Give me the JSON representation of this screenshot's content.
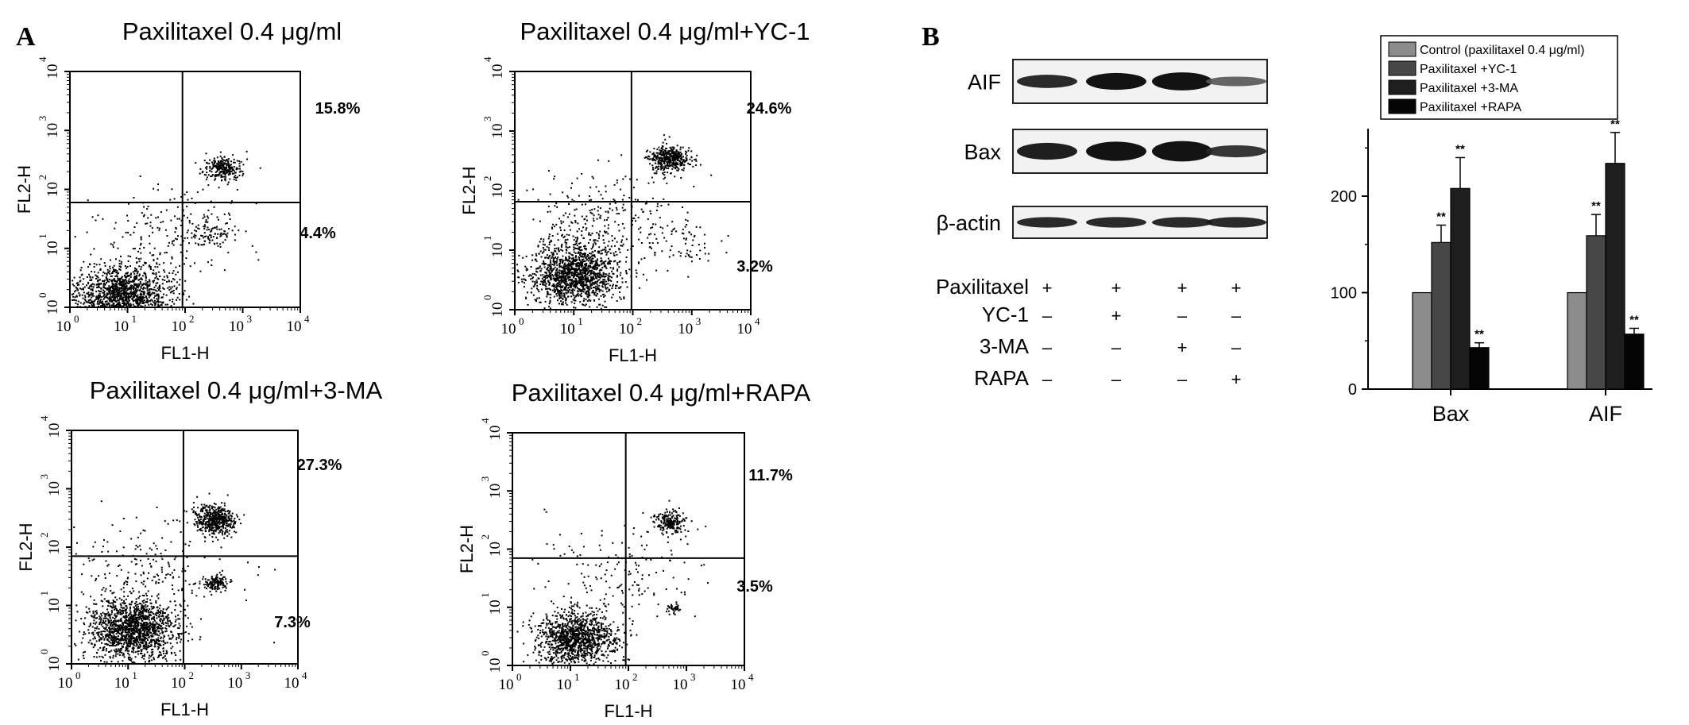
{
  "panel_a_letter": "A",
  "panel_b_letter": "B",
  "flow": {
    "xlabel": "FL1-H",
    "ylabel": "FL2-H",
    "tick_labels": [
      "10",
      "10",
      "10",
      "10",
      "10"
    ],
    "tick_exponents": [
      "0",
      "1",
      "2",
      "3",
      "4"
    ]
  },
  "chart_data": [
    {
      "type": "scatter",
      "title": "Paxilitaxel 0.4 μg/ml",
      "xlabel": "FL1-H",
      "ylabel": "FL2-H",
      "x_scale": "log",
      "y_scale": "log",
      "xlim": [
        1,
        10000
      ],
      "ylim": [
        1,
        10000
      ],
      "quadrant_gate": {
        "x": 90,
        "y": 60
      },
      "annotations": {
        "upper_right": "15.8%",
        "lower_right": "4.4%"
      },
      "populations": [
        {
          "cx": 8,
          "cy": 1.5,
          "spread": 0.35,
          "n": 1600
        },
        {
          "cx": 450,
          "cy": 230,
          "spread": 0.13,
          "n": 260
        },
        {
          "cx": 300,
          "cy": 18,
          "spread": 0.15,
          "n": 70
        },
        {
          "cx": 60,
          "cy": 20,
          "spread": 0.5,
          "n": 200
        }
      ]
    },
    {
      "type": "scatter",
      "title": "Paxilitaxel 0.4 μg/ml+YC-1",
      "xlabel": "FL1-H",
      "ylabel": "FL2-H",
      "x_scale": "log",
      "y_scale": "log",
      "xlim": [
        1,
        10000
      ],
      "ylim": [
        1,
        10000
      ],
      "quadrant_gate": {
        "x": 95,
        "y": 65
      },
      "annotations": {
        "upper_right": "24.6%",
        "lower_right": "3.2%"
      },
      "populations": [
        {
          "cx": 10,
          "cy": 4,
          "spread": 0.3,
          "n": 1400
        },
        {
          "cx": 400,
          "cy": 350,
          "spread": 0.14,
          "n": 420
        },
        {
          "cx": 30,
          "cy": 30,
          "spread": 0.55,
          "n": 300
        },
        {
          "cx": 700,
          "cy": 15,
          "spread": 0.25,
          "n": 60
        }
      ]
    },
    {
      "type": "scatter",
      "title": "Paxilitaxel 0.4 μg/ml+3-MA",
      "xlabel": "FL1-H",
      "ylabel": "FL2-H",
      "x_scale": "log",
      "y_scale": "log",
      "xlim": [
        1,
        10000
      ],
      "ylim": [
        1,
        10000
      ],
      "quadrant_gate": {
        "x": 95,
        "y": 70
      },
      "annotations": {
        "upper_right": "27.3%",
        "lower_right": "7.3%"
      },
      "populations": [
        {
          "cx": 12,
          "cy": 4,
          "spread": 0.32,
          "n": 1500
        },
        {
          "cx": 330,
          "cy": 300,
          "spread": 0.15,
          "n": 500
        },
        {
          "cx": 350,
          "cy": 25,
          "spread": 0.08,
          "n": 130
        },
        {
          "cx": 25,
          "cy": 40,
          "spread": 0.55,
          "n": 220
        }
      ]
    },
    {
      "type": "scatter",
      "title": "Paxilitaxel 0.4 μg/ml+RAPA",
      "xlabel": "FL1-H",
      "ylabel": "FL2-H",
      "x_scale": "log",
      "y_scale": "log",
      "xlim": [
        1,
        10000
      ],
      "ylim": [
        1,
        10000
      ],
      "quadrant_gate": {
        "x": 90,
        "y": 70
      },
      "annotations": {
        "upper_right": "11.7%",
        "lower_right": "3.5%"
      },
      "populations": [
        {
          "cx": 12,
          "cy": 3,
          "spread": 0.28,
          "n": 1200
        },
        {
          "cx": 500,
          "cy": 300,
          "spread": 0.12,
          "n": 200
        },
        {
          "cx": 600,
          "cy": 10,
          "spread": 0.06,
          "n": 40
        },
        {
          "cx": 60,
          "cy": 40,
          "spread": 0.55,
          "n": 160
        }
      ]
    },
    {
      "type": "bar",
      "categories": [
        "Bax",
        "AIF"
      ],
      "ylim": [
        0,
        270
      ],
      "yticks": [
        0,
        100,
        200
      ],
      "series": [
        {
          "name": "Control (paxilitaxel 0.4 μg/ml)",
          "color": "#8c8c8c",
          "values": [
            100,
            100
          ],
          "errors": [
            0,
            0
          ],
          "sig": [
            "",
            ""
          ]
        },
        {
          "name": "Paxilitaxel +YC-1",
          "color": "#474747",
          "values": [
            152,
            159
          ],
          "errors": [
            18,
            22
          ],
          "sig": [
            "**",
            "**"
          ]
        },
        {
          "name": "Paxilitaxel +3-MA",
          "color": "#1e1e1e",
          "values": [
            208,
            234
          ],
          "errors": [
            32,
            32
          ],
          "sig": [
            "**",
            "**"
          ]
        },
        {
          "name": "Paxilitaxel +RAPA",
          "color": "#050505",
          "values": [
            43,
            57
          ],
          "errors": [
            5,
            6
          ],
          "sig": [
            "**",
            "**"
          ]
        }
      ]
    }
  ],
  "blot": {
    "rows": [
      {
        "label": "AIF",
        "intensity": [
          0.9,
          1.0,
          1.0,
          0.65
        ],
        "thickness": [
          0.55,
          0.7,
          0.75,
          0.4
        ]
      },
      {
        "label": "Bax",
        "intensity": [
          0.95,
          1.0,
          1.0,
          0.85
        ],
        "thickness": [
          0.7,
          0.8,
          0.85,
          0.5
        ]
      },
      {
        "label": "β-actin",
        "intensity": [
          0.9,
          0.9,
          0.9,
          0.9
        ],
        "thickness": [
          0.6,
          0.6,
          0.6,
          0.6
        ]
      }
    ],
    "treatments": [
      {
        "label": "Paxilitaxel",
        "marks": [
          "+",
          "+",
          "+",
          "+"
        ]
      },
      {
        "label": "YC-1",
        "marks": [
          "–",
          "+",
          "–",
          "–"
        ]
      },
      {
        "label": "3-MA",
        "marks": [
          "–",
          "–",
          "+",
          "–"
        ]
      },
      {
        "label": "RAPA",
        "marks": [
          "–",
          "–",
          "–",
          "+"
        ]
      }
    ]
  }
}
